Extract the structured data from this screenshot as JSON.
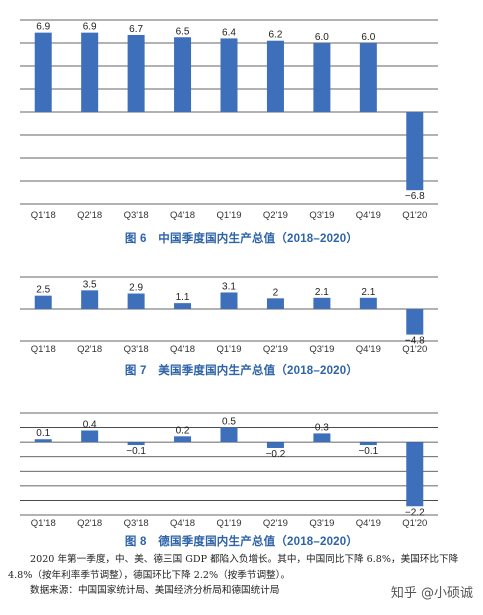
{
  "chart_data": [
    {
      "type": "bar",
      "caption": "图 6　中国季度国内生产总值（2018–2020）",
      "categories": [
        "Q1'18",
        "Q2'18",
        "Q3'18",
        "Q4'18",
        "Q1'19",
        "Q2'19",
        "Q3'19",
        "Q4'19",
        "Q1'20"
      ],
      "values": [
        6.9,
        6.9,
        6.7,
        6.5,
        6.4,
        6.2,
        6.0,
        6.0,
        -6.8
      ],
      "labels": [
        "6.9",
        "6.9",
        "6.7",
        "6.5",
        "6.4",
        "6.2",
        "6.0",
        "6.0",
        "−6.8"
      ],
      "ylim": [
        -8,
        8
      ],
      "gridlines": [
        8,
        6,
        4,
        2,
        0,
        -2,
        -4,
        -6,
        -8
      ],
      "bar_color": "#3e6fba",
      "grid": true
    },
    {
      "type": "bar",
      "caption": "图 7　美国季度国内生产总值（2018–2020）",
      "categories": [
        "Q1'18",
        "Q2'18",
        "Q3'18",
        "Q4'18",
        "Q1'19",
        "Q2'19",
        "Q3'19",
        "Q4'19",
        "Q1'20"
      ],
      "values": [
        2.5,
        3.5,
        2.9,
        1.1,
        3.1,
        2.0,
        2.1,
        2.1,
        -4.8
      ],
      "labels": [
        "2.5",
        "3.5",
        "2.9",
        "1.1",
        "3.1",
        "2",
        "2.1",
        "2.1",
        "−4.8"
      ],
      "ylim": [
        -6,
        6
      ],
      "gridlines": [
        6,
        0,
        -6
      ],
      "bar_color": "#3e6fba",
      "grid": true
    },
    {
      "type": "bar",
      "caption": "图 8　德国季度国内生产总值（2018–2020）",
      "categories": [
        "Q1'18",
        "Q2'18",
        "Q3'18",
        "Q4'18",
        "Q1'19",
        "Q2'19",
        "Q3'19",
        "Q4'19",
        "Q1'20"
      ],
      "values": [
        0.1,
        0.4,
        -0.1,
        0.2,
        0.5,
        -0.2,
        0.3,
        -0.1,
        -2.2
      ],
      "labels": [
        "0.1",
        "0.4",
        "−0.1",
        "0.2",
        "0.5",
        "−0.2",
        "0.3",
        "−0.1",
        "−2.2"
      ],
      "ylim": [
        -2.5,
        1.0
      ],
      "gridlines": [
        1.0,
        0.5,
        0,
        -0.5,
        -1.0,
        -1.5,
        -2.0,
        -2.5
      ],
      "bar_color": "#3e6fba",
      "grid": true
    }
  ],
  "note": {
    "line1": "2020 年第一季度，中、美、德三国 GDP 都陷入负增长。其中，中国同比下降 6.8%，美国环比下降",
    "line2": "4.8%（按年利率季节调整），德国环比下降 2.2%（按季节调整）。",
    "source": "数据来源：中国国家统计局、美国经济分析局和德国统计局"
  },
  "watermark": "知乎 @小硕诚"
}
